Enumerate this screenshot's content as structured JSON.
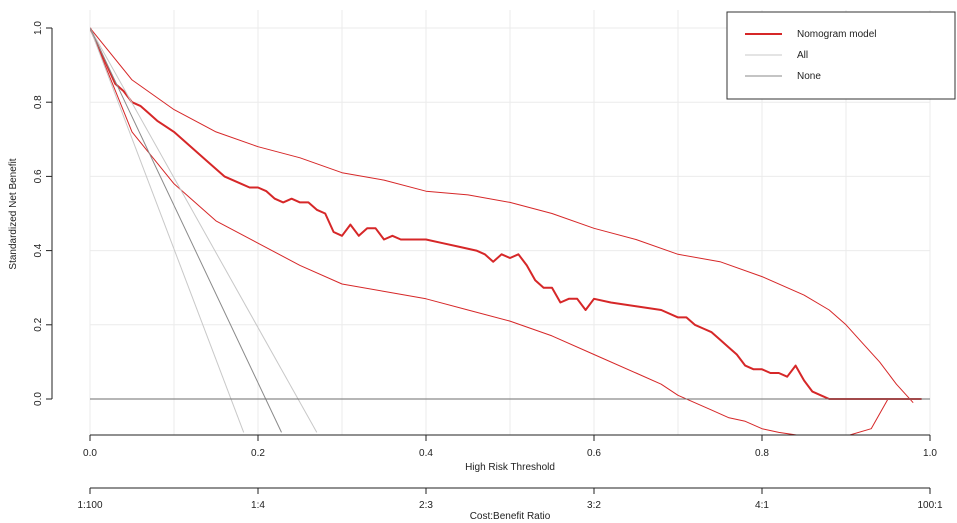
{
  "chart_data": {
    "type": "line",
    "xlabel": "High Risk Threshold",
    "ylabel": "Standardized Net Benefit",
    "xlim": [
      0,
      1
    ],
    "ylim": [
      -0.09,
      1.0
    ],
    "xticks": [
      "0.0",
      "0.2",
      "0.4",
      "0.6",
      "0.8",
      "1.0"
    ],
    "yticks": [
      "0.0",
      "0.2",
      "0.4",
      "0.6",
      "0.8",
      "1.0"
    ],
    "secondary_axis": {
      "label": "Cost:Benefit Ratio",
      "ticks": [
        {
          "x": 0.0,
          "label": "1:100"
        },
        {
          "x": 0.2,
          "label": "1:4"
        },
        {
          "x": 0.4,
          "label": "2:3"
        },
        {
          "x": 0.6,
          "label": "3:2"
        },
        {
          "x": 0.8,
          "label": "4:1"
        },
        {
          "x": 1.0,
          "label": "100:1"
        }
      ]
    },
    "grid": true,
    "legend_position": "top-right",
    "legend": [
      {
        "label": "Nomogram model",
        "color": "#d62728"
      },
      {
        "label": "All",
        "color": "#c8c8c8"
      },
      {
        "label": "None",
        "color": "#8a8a8a"
      }
    ],
    "series": [
      {
        "name": "Nomogram model",
        "color": "#d62728",
        "x": [
          0,
          0.02,
          0.03,
          0.04,
          0.05,
          0.06,
          0.07,
          0.08,
          0.1,
          0.12,
          0.14,
          0.15,
          0.16,
          0.18,
          0.19,
          0.2,
          0.21,
          0.22,
          0.23,
          0.24,
          0.25,
          0.26,
          0.27,
          0.28,
          0.29,
          0.3,
          0.31,
          0.32,
          0.33,
          0.34,
          0.35,
          0.36,
          0.37,
          0.38,
          0.4,
          0.42,
          0.44,
          0.46,
          0.47,
          0.48,
          0.49,
          0.5,
          0.51,
          0.52,
          0.53,
          0.54,
          0.55,
          0.56,
          0.57,
          0.58,
          0.59,
          0.6,
          0.62,
          0.65,
          0.68,
          0.7,
          0.71,
          0.72,
          0.73,
          0.74,
          0.75,
          0.76,
          0.77,
          0.78,
          0.79,
          0.8,
          0.81,
          0.82,
          0.83,
          0.84,
          0.85,
          0.86,
          0.87,
          0.88,
          0.9,
          0.95,
          0.99
        ],
        "y": [
          1.0,
          0.9,
          0.85,
          0.83,
          0.8,
          0.79,
          0.77,
          0.75,
          0.72,
          0.68,
          0.64,
          0.62,
          0.6,
          0.58,
          0.57,
          0.57,
          0.56,
          0.54,
          0.53,
          0.54,
          0.53,
          0.53,
          0.51,
          0.5,
          0.45,
          0.44,
          0.47,
          0.44,
          0.46,
          0.46,
          0.43,
          0.44,
          0.43,
          0.43,
          0.43,
          0.42,
          0.41,
          0.4,
          0.39,
          0.37,
          0.39,
          0.38,
          0.39,
          0.36,
          0.32,
          0.3,
          0.3,
          0.26,
          0.27,
          0.27,
          0.24,
          0.27,
          0.26,
          0.25,
          0.24,
          0.22,
          0.22,
          0.2,
          0.19,
          0.18,
          0.16,
          0.14,
          0.12,
          0.09,
          0.08,
          0.08,
          0.07,
          0.07,
          0.06,
          0.09,
          0.05,
          0.02,
          0.01,
          0.0,
          0.0,
          0.0,
          0.0
        ]
      },
      {
        "name": "Nomogram model upper CI",
        "color": "#d62728",
        "x": [
          0,
          0.05,
          0.1,
          0.15,
          0.2,
          0.25,
          0.3,
          0.35,
          0.4,
          0.45,
          0.5,
          0.55,
          0.6,
          0.65,
          0.7,
          0.75,
          0.8,
          0.85,
          0.88,
          0.9,
          0.92,
          0.94,
          0.96,
          0.98
        ],
        "y": [
          1.0,
          0.86,
          0.78,
          0.72,
          0.68,
          0.65,
          0.61,
          0.59,
          0.56,
          0.55,
          0.53,
          0.5,
          0.46,
          0.43,
          0.39,
          0.37,
          0.33,
          0.28,
          0.24,
          0.2,
          0.15,
          0.1,
          0.04,
          -0.01
        ]
      },
      {
        "name": "Nomogram model lower CI",
        "color": "#d62728",
        "x": [
          0,
          0.05,
          0.1,
          0.15,
          0.2,
          0.25,
          0.3,
          0.35,
          0.4,
          0.45,
          0.5,
          0.55,
          0.6,
          0.65,
          0.68,
          0.7,
          0.72,
          0.74,
          0.76,
          0.78,
          0.8,
          0.82,
          0.85,
          0.9,
          0.93,
          0.95
        ],
        "y": [
          1.0,
          0.72,
          0.58,
          0.48,
          0.42,
          0.36,
          0.31,
          0.29,
          0.27,
          0.24,
          0.21,
          0.17,
          0.12,
          0.07,
          0.04,
          0.01,
          -0.01,
          -0.03,
          -0.05,
          -0.06,
          -0.08,
          -0.09,
          -0.1,
          -0.1,
          -0.08,
          0.0
        ]
      },
      {
        "name": "All",
        "color": "#c8c8c8",
        "x": [
          0,
          0.183
        ],
        "y": [
          1.0,
          -0.09
        ]
      },
      {
        "name": "All upper CI",
        "color": "#c8c8c8",
        "x": [
          0,
          0.27
        ],
        "y": [
          1.0,
          -0.09
        ]
      },
      {
        "name": "All mid",
        "color": "#8a8a8a",
        "x": [
          0,
          0.228
        ],
        "y": [
          1.0,
          -0.09
        ]
      },
      {
        "name": "None",
        "color": "#6e6e6e",
        "x": [
          0,
          1.0
        ],
        "y": [
          0.0,
          0.0
        ]
      }
    ]
  }
}
